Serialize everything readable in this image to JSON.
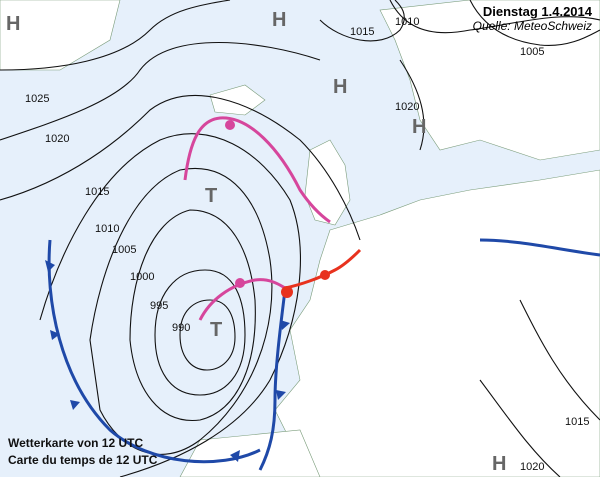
{
  "header": {
    "date": "Dienstag 1.4.2014",
    "source": "Quelle: MeteoSchweiz"
  },
  "caption": {
    "de": "Wetterkarte von 12 UTC",
    "fr": "Carte du temps de 12 UTC"
  },
  "colors": {
    "sea": "#e6f0fb",
    "land": "#ffffff",
    "isobar": "#111111",
    "cold_front": "#1f49a8",
    "warm_front": "#e8321e",
    "occlusion": "#d6469c",
    "pressure_center": "#666666"
  },
  "pressure_centers": [
    {
      "label": "H"
    },
    {
      "label": "H"
    },
    {
      "label": "H"
    },
    {
      "label": "T"
    },
    {
      "label": "T"
    },
    {
      "label": "H"
    },
    {
      "label": "H"
    }
  ],
  "isobars": [
    "1025",
    "1020",
    "1015",
    "1010",
    "1005",
    "1000",
    "995",
    "990",
    "1010",
    "1005",
    "1015",
    "1015",
    "1020",
    "1020"
  ]
}
